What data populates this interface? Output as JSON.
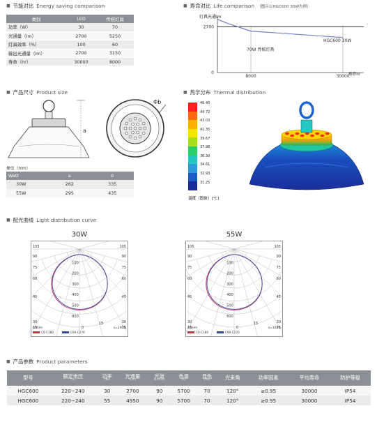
{
  "energy": {
    "title_cn": "节能对比",
    "title_en": "Energy saving comparison",
    "headers": [
      "类别",
      "LED",
      "传统灯具"
    ],
    "rows": [
      [
        "功率（W）",
        "30",
        "70"
      ],
      [
        "光通量（lm）",
        "2700",
        "5250"
      ],
      [
        "灯具效率（%）",
        "100",
        "60"
      ],
      [
        "输出光通量（lm）",
        "2700",
        "3150"
      ],
      [
        "寿命（hr）",
        "30000",
        "8000"
      ]
    ]
  },
  "life": {
    "title_cn": "寿命对比",
    "title_en": "Life comparison",
    "note": "（图示以HGC600 30W为例）",
    "ylabel": "灯具光通lm",
    "xlabel": "寿命hr",
    "label_led": "HGC600 30W",
    "label_trad": "70W 传统灯具"
  },
  "size": {
    "title_cn": "产品尺寸",
    "title_en": "Product size",
    "dim_a": "a",
    "dim_b": "Φb",
    "unit": "单位（mm）",
    "headers": [
      "Watt",
      "a",
      "b"
    ],
    "rows": [
      [
        "30W",
        "262",
        "335"
      ],
      [
        "55W",
        "295",
        "435"
      ]
    ]
  },
  "thermal": {
    "title_cn": "热学分布",
    "title_en": "Thermal distribution",
    "scale": [
      "46.40",
      "44.72",
      "43.03",
      "41.35",
      "39.67",
      "37.98",
      "36.30",
      "34.61",
      "32.93",
      "31.25"
    ],
    "scale_colors": [
      "#ff2020",
      "#ff6a10",
      "#ffb000",
      "#f2e600",
      "#a8e020",
      "#28d06a",
      "#20c8c0",
      "#2a9ad8",
      "#1c5cc8",
      "#1a2c9a"
    ],
    "caption": "温度（固体）[℃]"
  },
  "distribution": {
    "title_cn": "配光曲线",
    "title_en": "Light distribution curve",
    "charts": [
      {
        "title": "30W",
        "legend1": "C0-C180",
        "legend2": "C90-C270",
        "unit": "cd/klm",
        "eff": "η=100%"
      },
      {
        "title": "55W",
        "legend1": "C0-C180",
        "legend2": "C90-C270",
        "unit": "cd/klm",
        "eff": "η=100%"
      }
    ],
    "angles": [
      "105",
      "90",
      "75",
      "60",
      "45",
      "30",
      "15",
      "0"
    ],
    "radii": [
      "100",
      "200",
      "300",
      "400",
      "500",
      "600"
    ]
  },
  "params": {
    "title_cn": "产品参数",
    "title_en": "Product parameters",
    "headers": [
      {
        "cn": "型号",
        "sub": ""
      },
      {
        "cn": "额定电压",
        "sub": "（V）"
      },
      {
        "cn": "功率",
        "sub": "(W)"
      },
      {
        "cn": "光通量",
        "sub": "(Lm)"
      },
      {
        "cn": "光效",
        "sub": "(Lm/W)"
      },
      {
        "cn": "色温",
        "sub": "(K)"
      },
      {
        "cn": "显色",
        "sub": "(Ra)"
      },
      {
        "cn": "光束角",
        "sub": ""
      },
      {
        "cn": "功率因素",
        "sub": ""
      },
      {
        "cn": "平均寿命",
        "sub": ""
      },
      {
        "cn": "防护等级",
        "sub": ""
      }
    ],
    "rows": [
      [
        "HGC600",
        "220~240",
        "30",
        "2700",
        "90",
        "5700",
        "70",
        "120°",
        "≥0.95",
        "30000",
        "IP54"
      ],
      [
        "HGC600",
        "220~240",
        "55",
        "4950",
        "90",
        "5700",
        "70",
        "120°",
        "≥0.95",
        "30000",
        "IP54"
      ]
    ]
  },
  "chart_data": {
    "type": "line",
    "title": "",
    "xlabel": "寿命hr",
    "ylabel": "灯具光通lm",
    "x_ticks": [
      8000,
      30000
    ],
    "y_ticks": [
      0,
      2700
    ],
    "xlim": [
      0,
      35000
    ],
    "ylim": [
      0,
      3300
    ],
    "series": [
      {
        "name": "HGC600 30W",
        "x": [
          0,
          30000
        ],
        "y": [
          2700,
          2700
        ],
        "color": "#333333"
      },
      {
        "name": "70W 传统灯具",
        "x": [
          0,
          2500,
          8000,
          30000
        ],
        "y": [
          3150,
          2900,
          2450,
          2070
        ],
        "color": "#6a7fc0"
      }
    ]
  }
}
